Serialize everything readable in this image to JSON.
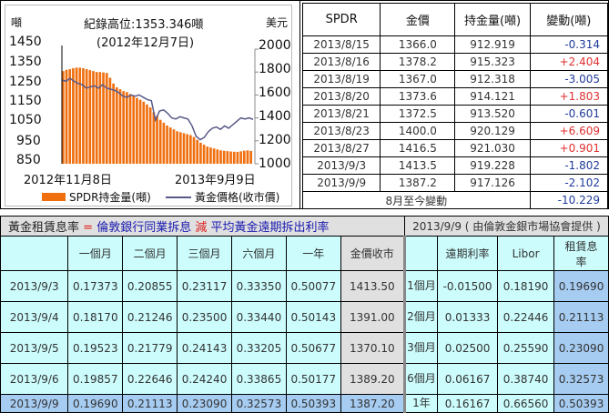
{
  "chart_data": {
    "type": "bar",
    "title": "紀錄高位:1353.346噸",
    "subtitle": "(2012年12月7日)",
    "left_axis_label": "噸",
    "right_axis_label": "美元",
    "left_ticks": [
      "1450",
      "1350",
      "1250",
      "1150",
      "1050",
      "950",
      "850"
    ],
    "right_ticks": [
      "2000",
      "1800",
      "1600",
      "1400",
      "1200",
      "1000"
    ],
    "ylim_left": [
      850,
      1450
    ],
    "ylim_right": [
      1000,
      2000
    ],
    "x_start": "2012年11月8日",
    "x_end": "2013年9月9日",
    "legend": [
      "SPDR持金量(噸)",
      "黃金價格(收市價)"
    ],
    "series": [
      {
        "name": "SPDR持金量(噸)",
        "type": "bar",
        "values": [
          1335,
          1342,
          1345,
          1350,
          1353,
          1353,
          1350,
          1345,
          1340,
          1335,
          1330,
          1330,
          1328,
          1325,
          1300,
          1270,
          1250,
          1240,
          1230,
          1225,
          1215,
          1205,
          1195,
          1185,
          1175,
          1160,
          1145,
          1120,
          1100,
          1080,
          1065,
          1050,
          1040,
          1030,
          1020,
          1015,
          1010,
          1005,
          1000,
          990,
          975,
          960,
          950,
          940,
          935,
          930,
          925,
          920,
          918,
          916,
          914,
          913,
          912,
          915,
          918,
          920,
          917
        ]
      },
      {
        "name": "黃金價格(收市價)",
        "type": "line",
        "values": [
          1730,
          1720,
          1745,
          1720,
          1700,
          1690,
          1660,
          1670,
          1680,
          1660,
          1690,
          1660,
          1650,
          1640,
          1620,
          1590,
          1580,
          1600,
          1590,
          1600,
          1580,
          1560,
          1550,
          1380,
          1460,
          1470,
          1440,
          1400,
          1390,
          1410,
          1400,
          1390,
          1330,
          1240,
          1210,
          1230,
          1280,
          1310,
          1320,
          1300,
          1330,
          1310,
          1340,
          1370,
          1400,
          1390,
          1400,
          1387
        ]
      }
    ]
  },
  "chart": {
    "title": "紀錄高位:1353.346噸",
    "subtitle": "(2012年12月7日)",
    "left_unit": "噸",
    "right_unit": "美元",
    "left_ticks": [
      "1450",
      "1350",
      "1250",
      "1150",
      "1050",
      "950",
      "850"
    ],
    "right_ticks": [
      "2000",
      "1800",
      "1600",
      "1400",
      "1200",
      "1000"
    ],
    "x_start": "2012年11月8日",
    "x_end": "2013年9月9日",
    "legend_bar": "SPDR持金量(噸)",
    "legend_line": "黃金價格(收市價)",
    "bar_color": "#f07010",
    "line_color": "#5a5a8a"
  },
  "spdr_table": {
    "headers": [
      "SPDR",
      "金價",
      "持金量(噸)",
      "變動(噸)"
    ],
    "rows": [
      {
        "date": "2013/8/15",
        "price": "1366.0",
        "holding": "912.919",
        "change": "-0.314"
      },
      {
        "date": "2013/8/16",
        "price": "1378.2",
        "holding": "915.323",
        "change": "+2.404"
      },
      {
        "date": "2013/8/19",
        "price": "1367.0",
        "holding": "912.318",
        "change": "-3.005"
      },
      {
        "date": "2013/8/20",
        "price": "1373.6",
        "holding": "914.121",
        "change": "+1.803"
      },
      {
        "date": "2013/8/21",
        "price": "1372.5",
        "holding": "913.520",
        "change": "-0.601"
      },
      {
        "date": "2013/8/23",
        "price": "1400.0",
        "holding": "920.129",
        "change": "+6.609"
      },
      {
        "date": "2013/8/27",
        "price": "1416.5",
        "holding": "921.030",
        "change": "+0.901"
      },
      {
        "date": "2013/9/3",
        "price": "1413.5",
        "holding": "919.228",
        "change": "-1.802"
      },
      {
        "date": "2013/9/9",
        "price": "1387.2",
        "holding": "917.126",
        "change": "-2.102"
      }
    ],
    "summary_label": "8月至今變動",
    "summary_value": "-10.229"
  },
  "lease_table": {
    "title_part1": "黃金租賃息率",
    "title_eq": " = ",
    "title_part2": "倫敦銀行同業拆息",
    "title_minus": " 減 ",
    "title_part3": "平均黃金遠期拆出利率",
    "headers": [
      "",
      "一個月",
      "二個月",
      "三個月",
      "六個月",
      "一年",
      "金價收市"
    ],
    "rows": [
      {
        "date": "2013/9/3",
        "m1": "0.17373",
        "m2": "0.20855",
        "m3": "0.23117",
        "m6": "0.33350",
        "y1": "0.50077",
        "close": "1413.50"
      },
      {
        "date": "2013/9/4",
        "m1": "0.18170",
        "m2": "0.21246",
        "m3": "0.23500",
        "m6": "0.33440",
        "y1": "0.50143",
        "close": "1391.00"
      },
      {
        "date": "2013/9/5",
        "m1": "0.19523",
        "m2": "0.21779",
        "m3": "0.24143",
        "m6": "0.33205",
        "y1": "0.50677",
        "close": "1370.10"
      },
      {
        "date": "2013/9/6",
        "m1": "0.19857",
        "m2": "0.22646",
        "m3": "0.24240",
        "m6": "0.33865",
        "y1": "0.50177",
        "close": "1389.20"
      },
      {
        "date": "2013/9/9",
        "m1": "0.19690",
        "m2": "0.21113",
        "m3": "0.23090",
        "m6": "0.32573",
        "y1": "0.50393",
        "close": "1387.20"
      }
    ]
  },
  "lbma_table": {
    "title": "2013/9/9 ( 由倫敦金銀市場協會提供 )",
    "headers": [
      "",
      "遠期利率",
      "Libor",
      "租賃息率"
    ],
    "rows": [
      {
        "term": "1個月",
        "forward": "-0.01500",
        "libor": "0.18190",
        "lease": "0.19690"
      },
      {
        "term": "2個月",
        "forward": "0.01333",
        "libor": "0.22446",
        "lease": "0.21113"
      },
      {
        "term": "3個月",
        "forward": "0.02500",
        "libor": "0.25590",
        "lease": "0.23090"
      },
      {
        "term": "6個月",
        "forward": "0.06167",
        "libor": "0.38740",
        "lease": "0.32573"
      },
      {
        "term": "1年",
        "forward": "0.16167",
        "libor": "0.66560",
        "lease": "0.50393"
      }
    ]
  }
}
